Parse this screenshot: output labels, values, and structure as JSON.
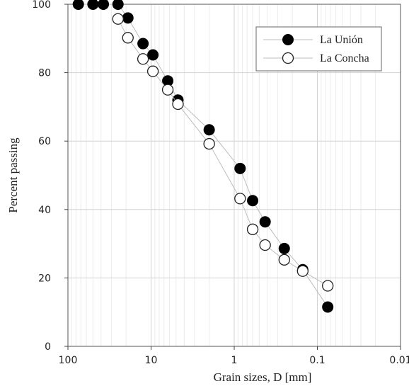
{
  "chart_data": {
    "type": "scatter",
    "title": "",
    "xlabel": "Grain sizes, D [mm]",
    "ylabel": "Percent passing",
    "x_scale": "log",
    "x_reversed": true,
    "xlim": [
      100,
      0.01
    ],
    "ylim": [
      0,
      100
    ],
    "x_ticks": [
      {
        "value": 100,
        "label": "100"
      },
      {
        "value": 10,
        "label": "10"
      },
      {
        "value": 1,
        "label": "1"
      },
      {
        "value": 0.1,
        "label": "0.1"
      },
      {
        "value": 0.01,
        "label": "0.01"
      }
    ],
    "y_ticks": [
      {
        "value": 0,
        "label": "0"
      },
      {
        "value": 20,
        "label": "20"
      },
      {
        "value": 40,
        "label": "40"
      },
      {
        "value": 60,
        "label": "60"
      },
      {
        "value": 80,
        "label": "80"
      },
      {
        "value": 100,
        "label": "100"
      }
    ],
    "grid": true,
    "legend_position": "top-right",
    "series": [
      {
        "name": "La Unión",
        "marker": "filled-circle",
        "color": "#000000",
        "points": [
          {
            "x": 75,
            "y": 100
          },
          {
            "x": 50,
            "y": 100
          },
          {
            "x": 37.5,
            "y": 100
          },
          {
            "x": 25,
            "y": 100
          },
          {
            "x": 19,
            "y": 96
          },
          {
            "x": 12.5,
            "y": 88.5
          },
          {
            "x": 9.5,
            "y": 85.2
          },
          {
            "x": 6.3,
            "y": 77.6
          },
          {
            "x": 4.75,
            "y": 72
          },
          {
            "x": 2,
            "y": 63.3
          },
          {
            "x": 0.85,
            "y": 52
          },
          {
            "x": 0.6,
            "y": 42.6
          },
          {
            "x": 0.425,
            "y": 36.4
          },
          {
            "x": 0.25,
            "y": 28.6
          },
          {
            "x": 0.15,
            "y": 22.4
          },
          {
            "x": 0.075,
            "y": 11.5
          }
        ]
      },
      {
        "name": "La Concha",
        "marker": "open-circle",
        "color": "#222222",
        "points": [
          {
            "x": 25,
            "y": 95.7
          },
          {
            "x": 19,
            "y": 90.2
          },
          {
            "x": 12.5,
            "y": 84
          },
          {
            "x": 9.5,
            "y": 80.4
          },
          {
            "x": 6.3,
            "y": 75
          },
          {
            "x": 4.75,
            "y": 70.8
          },
          {
            "x": 2,
            "y": 59.2
          },
          {
            "x": 0.85,
            "y": 43.2
          },
          {
            "x": 0.6,
            "y": 34.2
          },
          {
            "x": 0.425,
            "y": 29.6
          },
          {
            "x": 0.25,
            "y": 25.3
          },
          {
            "x": 0.15,
            "y": 22
          },
          {
            "x": 0.075,
            "y": 17.7
          }
        ]
      }
    ]
  }
}
